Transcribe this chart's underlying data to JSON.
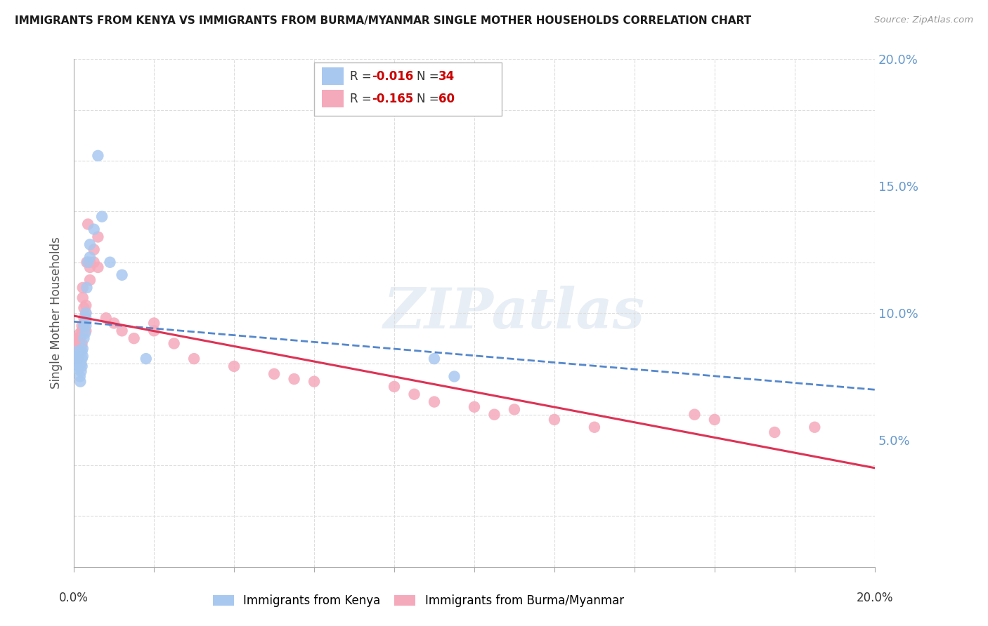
{
  "title": "IMMIGRANTS FROM KENYA VS IMMIGRANTS FROM BURMA/MYANMAR SINGLE MOTHER HOUSEHOLDS CORRELATION CHART",
  "source": "Source: ZipAtlas.com",
  "ylabel": "Single Mother Households",
  "kenya_R": "-0.016",
  "kenya_N": "34",
  "burma_R": "-0.165",
  "burma_N": "60",
  "kenya_color": "#a8c8f0",
  "burma_color": "#f5aabb",
  "kenya_trend_color": "#5588cc",
  "burma_trend_color": "#dd3355",
  "background_color": "#ffffff",
  "watermark": "ZIPatlas",
  "right_tick_color": "#6699cc",
  "grid_color": "#dddddd",
  "title_color": "#1a1a1a",
  "source_color": "#999999",
  "legend_edge_color": "#bbbbbb",
  "kenya_label": "Immigrants from Kenya",
  "burma_label": "Immigrants from Burma/Myanmar",
  "kenya_x": [
    0.0005,
    0.0008,
    0.001,
    0.001,
    0.0012,
    0.0013,
    0.0015,
    0.0015,
    0.0016,
    0.0018,
    0.0018,
    0.002,
    0.002,
    0.002,
    0.0022,
    0.0022,
    0.0025,
    0.0025,
    0.0028,
    0.003,
    0.003,
    0.003,
    0.0032,
    0.0035,
    0.004,
    0.004,
    0.005,
    0.006,
    0.007,
    0.009,
    0.012,
    0.018,
    0.09,
    0.095
  ],
  "kenya_y": [
    0.083,
    0.082,
    0.085,
    0.078,
    0.082,
    0.079,
    0.08,
    0.075,
    0.073,
    0.08,
    0.077,
    0.085,
    0.082,
    0.079,
    0.086,
    0.083,
    0.095,
    0.09,
    0.092,
    0.1,
    0.098,
    0.095,
    0.11,
    0.12,
    0.127,
    0.122,
    0.133,
    0.162,
    0.138,
    0.12,
    0.115,
    0.082,
    0.082,
    0.075
  ],
  "burma_x": [
    0.0003,
    0.0005,
    0.0006,
    0.0007,
    0.0008,
    0.001,
    0.001,
    0.001,
    0.0012,
    0.0013,
    0.0015,
    0.0015,
    0.0016,
    0.0018,
    0.0018,
    0.002,
    0.002,
    0.002,
    0.0022,
    0.0022,
    0.0025,
    0.0025,
    0.0025,
    0.003,
    0.003,
    0.003,
    0.003,
    0.0032,
    0.0035,
    0.004,
    0.004,
    0.004,
    0.005,
    0.005,
    0.006,
    0.006,
    0.008,
    0.01,
    0.012,
    0.015,
    0.02,
    0.02,
    0.025,
    0.03,
    0.04,
    0.05,
    0.055,
    0.06,
    0.08,
    0.085,
    0.09,
    0.1,
    0.105,
    0.11,
    0.12,
    0.13,
    0.155,
    0.16,
    0.175,
    0.185
  ],
  "burma_y": [
    0.09,
    0.087,
    0.086,
    0.087,
    0.086,
    0.088,
    0.085,
    0.082,
    0.09,
    0.087,
    0.092,
    0.088,
    0.085,
    0.091,
    0.087,
    0.095,
    0.093,
    0.088,
    0.11,
    0.106,
    0.102,
    0.098,
    0.095,
    0.103,
    0.1,
    0.097,
    0.093,
    0.12,
    0.135,
    0.12,
    0.118,
    0.113,
    0.125,
    0.12,
    0.13,
    0.118,
    0.098,
    0.096,
    0.093,
    0.09,
    0.096,
    0.093,
    0.088,
    0.082,
    0.079,
    0.076,
    0.074,
    0.073,
    0.071,
    0.068,
    0.065,
    0.063,
    0.06,
    0.062,
    0.058,
    0.055,
    0.06,
    0.058,
    0.053,
    0.055
  ],
  "xlim": [
    0.0,
    0.2
  ],
  "ylim": [
    0.0,
    0.2
  ],
  "right_yticks": [
    0.05,
    0.1,
    0.15,
    0.2
  ]
}
